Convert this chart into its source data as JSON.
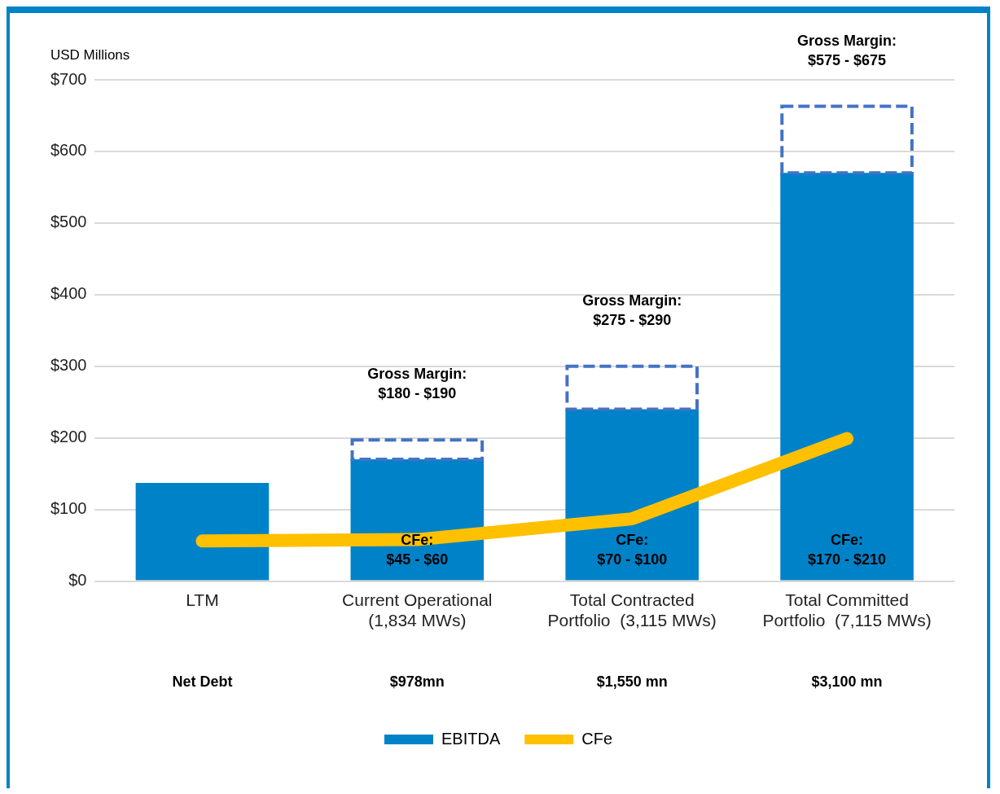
{
  "chart_data": {
    "type": "bar",
    "ylabel": "USD Millions",
    "categories": [
      "LTM",
      "Current Operational\n(1,834 MWs)",
      "Total Contracted\nPortfolio  (3,115 MWs)",
      "Total Committed\nPortfolio  (7,115 MWs)"
    ],
    "series": [
      {
        "name": "EBITDA",
        "color": "#0082c8",
        "values": [
          137,
          170,
          240,
          570
        ]
      },
      {
        "color": "#4472c4",
        "values": [
          null,
          27,
          60,
          93
        ],
        "line_style": "dashed"
      },
      {
        "name": "CFe",
        "type": "line",
        "color": "#ffc000",
        "values": [
          56,
          58,
          87,
          199
        ]
      }
    ],
    "stacked": true,
    "ylim": [
      0,
      700
    ],
    "yticks": [
      {
        "value": 0,
        "label": "$0"
      },
      {
        "value": 100,
        "label": "$100"
      },
      {
        "value": 200,
        "label": "$200"
      },
      {
        "value": 300,
        "label": "$300"
      },
      {
        "value": 400,
        "label": "$400"
      },
      {
        "value": 500,
        "label": "$500"
      },
      {
        "value": 600,
        "label": "$600"
      },
      {
        "value": 700,
        "label": "$700"
      }
    ],
    "grid": "y",
    "legend": "bottom",
    "marker": "none",
    "annotations": [
      "Gross Margin:\n$180 - $190",
      "Gross Margin:\n$275 - $290",
      "Gross Margin:\n$575 - $675",
      "CFe:\n$45 - $60",
      "CFe:\n$70 - $100",
      "CFe:\n$170 - $210",
      "Net Debt",
      "$978mn",
      "$1,550 mn",
      "$3,100 mn"
    ]
  }
}
